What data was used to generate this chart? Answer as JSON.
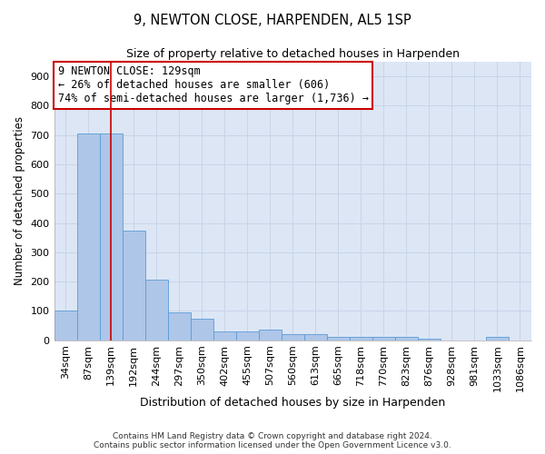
{
  "title": "9, NEWTON CLOSE, HARPENDEN, AL5 1SP",
  "subtitle": "Size of property relative to detached houses in Harpenden",
  "xlabel": "Distribution of detached houses by size in Harpenden",
  "ylabel": "Number of detached properties",
  "bar_labels": [
    "34sqm",
    "87sqm",
    "139sqm",
    "192sqm",
    "244sqm",
    "297sqm",
    "350sqm",
    "402sqm",
    "455sqm",
    "507sqm",
    "560sqm",
    "613sqm",
    "665sqm",
    "718sqm",
    "770sqm",
    "823sqm",
    "876sqm",
    "928sqm",
    "981sqm",
    "1033sqm",
    "1086sqm"
  ],
  "bar_heights": [
    100,
    706,
    706,
    375,
    207,
    96,
    72,
    30,
    31,
    35,
    20,
    20,
    10,
    10,
    10,
    10,
    5,
    0,
    0,
    10,
    0
  ],
  "bar_color": "#aec6e8",
  "bar_edge_color": "#5b9bd5",
  "grid_color": "#c8d4e8",
  "background_color": "#dce6f5",
  "red_line_x": 2.0,
  "annotation_text": "9 NEWTON CLOSE: 129sqm\n← 26% of detached houses are smaller (606)\n74% of semi-detached houses are larger (1,736) →",
  "annotation_box_color": "#ffffff",
  "annotation_border_color": "#cc0000",
  "ylim": [
    0,
    950
  ],
  "yticks": [
    0,
    100,
    200,
    300,
    400,
    500,
    600,
    700,
    800,
    900
  ],
  "footer_line1": "Contains HM Land Registry data © Crown copyright and database right 2024.",
  "footer_line2": "Contains public sector information licensed under the Open Government Licence v3.0."
}
